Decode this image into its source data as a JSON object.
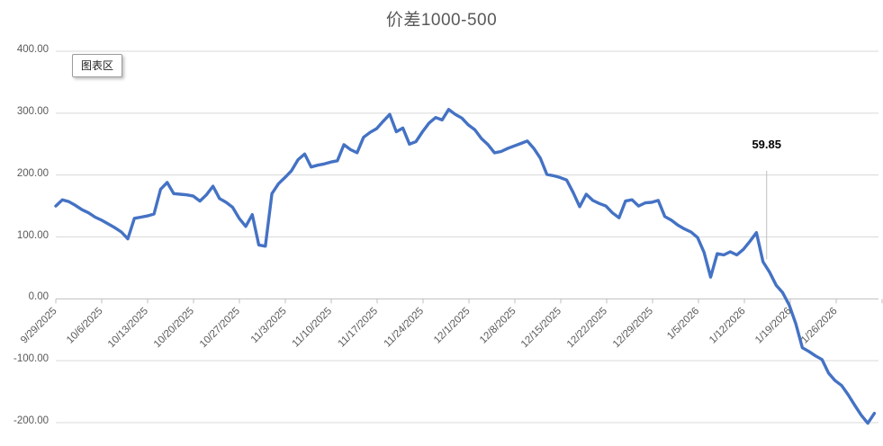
{
  "overlay": {
    "chart_area_tooltip": "图表区"
  },
  "chart_data": {
    "type": "line",
    "title": "价差1000-500",
    "series_color": "#4472C4",
    "grid": "horizontal",
    "legend": "none",
    "frequency": "daily",
    "start_date": "9/29/2025",
    "ylim": [
      -200,
      400
    ],
    "y_ticks": [
      {
        "value": 400,
        "label": "400.00"
      },
      {
        "value": 300,
        "label": "300.00"
      },
      {
        "value": 200,
        "label": "200.00"
      },
      {
        "value": 100,
        "label": "100.00"
      },
      {
        "value": 0,
        "label": "0.00"
      },
      {
        "value": -100,
        "label": "-100.00"
      },
      {
        "value": -200,
        "label": "-200.00"
      }
    ],
    "x_ticks": [
      "9/29/2025",
      "10/6/2025",
      "10/13/2025",
      "10/20/2025",
      "10/27/2025",
      "11/3/2025",
      "11/10/2025",
      "11/17/2025",
      "11/24/2025",
      "12/1/2025",
      "12/8/2025",
      "12/15/2025",
      "12/22/2025",
      "12/29/2025",
      "1/5/2026",
      "1/12/2026",
      "1/19/2026",
      "1/26/2026"
    ],
    "x_tick_interval_days": 7,
    "values": [
      150,
      160,
      157,
      151,
      144,
      139,
      132,
      127,
      121,
      115,
      108,
      97,
      130,
      132,
      134,
      137,
      177,
      188,
      170,
      169,
      168,
      166,
      158,
      168,
      182,
      162,
      156,
      148,
      130,
      117,
      136,
      87,
      85,
      170,
      186,
      196,
      207,
      225,
      234,
      213,
      216,
      218,
      221,
      223,
      249,
      241,
      236,
      261,
      269,
      275,
      287,
      298,
      270,
      276,
      250,
      254,
      270,
      284,
      293,
      289,
      306,
      298,
      292,
      281,
      273,
      259,
      249,
      236,
      238,
      243,
      247,
      251,
      255,
      243,
      227,
      201,
      199,
      196,
      192,
      172,
      149,
      169,
      159,
      154,
      150,
      139,
      131,
      158,
      160,
      150,
      155,
      156,
      159,
      133,
      127,
      119,
      113,
      108,
      99,
      75,
      35,
      73,
      71,
      76,
      71,
      80,
      93,
      107,
      59.85,
      43,
      22,
      10,
      -10,
      -40,
      -79,
      -85,
      -92,
      -98,
      -120,
      -132,
      -140,
      -155,
      -172,
      -188,
      -201,
      -185
    ],
    "annotation": {
      "text": "59.85",
      "value": 59.85,
      "index": 108
    }
  }
}
